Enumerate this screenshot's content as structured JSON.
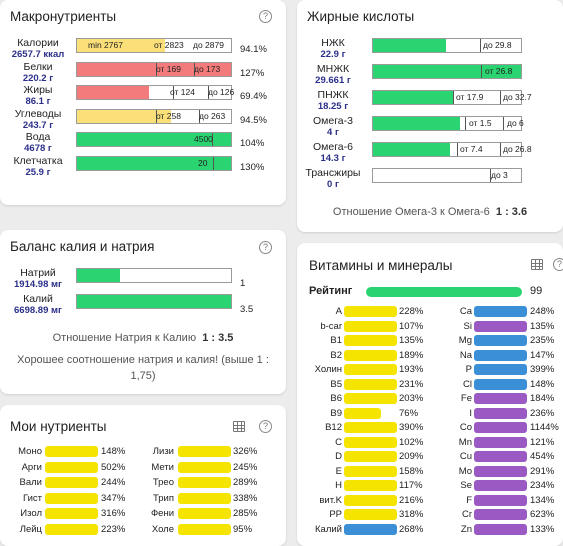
{
  "colors": {
    "green": "#2ad571",
    "red": "#f47b7b",
    "yellow_light": "#fbe07a",
    "yellow": "#f5e400",
    "blue": "#3b8fd6",
    "purple": "#9b59c4"
  },
  "macro": {
    "title": "Макронутриенты",
    "rows": [
      {
        "name": "Калории",
        "value": "2657.7 ккал",
        "fill_pct": 57,
        "color": "yellow",
        "ticks": [
          {
            "t": "min 2767",
            "dark": false
          },
          {
            "t": "от 2823",
            "dark": false
          },
          {
            "t": "до 2879",
            "dark": false
          }
        ],
        "pct": "94.1%"
      },
      {
        "name": "Белки",
        "value": "220.2 г",
        "fill_pct": 100,
        "color": "red",
        "ticks": [
          {
            "t": "от 169"
          },
          {
            "t": "до 173"
          }
        ],
        "pct": "127%"
      },
      {
        "name": "Жиры",
        "value": "86.1 г",
        "fill_pct": 47,
        "color": "red",
        "ticks": [
          {
            "t": "от 124"
          },
          {
            "t": "до 126"
          }
        ],
        "pct": "69.4%"
      },
      {
        "name": "Углеводы",
        "value": "243.7 г",
        "fill_pct": 61,
        "color": "yellow",
        "ticks": [
          {
            "t": "от 258"
          },
          {
            "t": "до 263"
          }
        ],
        "pct": "94.5%"
      },
      {
        "name": "Вода",
        "value": "4678 г",
        "fill_pct": 100,
        "color": "green",
        "ticks": [
          {
            "t": "4500"
          }
        ],
        "pct": "104%"
      },
      {
        "name": "Клетчатка",
        "value": "25.9 г",
        "fill_pct": 100,
        "color": "green",
        "ticks": [
          {
            "t": "20"
          }
        ],
        "pct": "130%"
      }
    ]
  },
  "fatty": {
    "title": "Жирные кислоты",
    "rows": [
      {
        "name": "НЖК",
        "value": "22.9 г",
        "fill_pct": 49,
        "ticks": [
          {
            "t": "до 29.8"
          }
        ]
      },
      {
        "name": "МНЖК",
        "value": "29.661 г",
        "fill_pct": 100,
        "ticks": [
          {
            "t": "от 26.8"
          }
        ]
      },
      {
        "name": "ПНЖК",
        "value": "18.25 г",
        "fill_pct": 55,
        "ticks": [
          {
            "t": "от 17.9"
          },
          {
            "t": "до 32.7"
          }
        ]
      },
      {
        "name": "Омега-3",
        "value": "4 г",
        "fill_pct": 59,
        "ticks": [
          {
            "t": "от 1.5"
          },
          {
            "t": "до 6"
          }
        ]
      },
      {
        "name": "Омега-6",
        "value": "14.3 г",
        "fill_pct": 52,
        "ticks": [
          {
            "t": "от 7.4"
          },
          {
            "t": "до 26.8"
          }
        ]
      },
      {
        "name": "Трансжиры",
        "value": "0 г",
        "fill_pct": 0,
        "ticks": [
          {
            "t": "до 3"
          }
        ]
      }
    ],
    "ratio_label": "Отношение Омега-3 к Омега-6",
    "ratio_value": "1 : 3.6"
  },
  "balance": {
    "title": "Баланс калия и натрия",
    "rows": [
      {
        "name": "Натрий",
        "value": "1914.98 мг",
        "fill_pct": 28,
        "tick": "1"
      },
      {
        "name": "Калий",
        "value": "6698.89 мг",
        "fill_pct": 100,
        "tick": "3.5"
      }
    ],
    "ratio_label": "Отношение Натрия к Калию",
    "ratio_value": "1 : 3.5",
    "note": "Хорошее соотношение натрия и калия! (выше 1 : 1,75)"
  },
  "my": {
    "title": "Мои нутриенты",
    "left": [
      {
        "name": "Моно",
        "pct": "148%"
      },
      {
        "name": "Арги",
        "pct": "502%"
      },
      {
        "name": "Вали",
        "pct": "244%"
      },
      {
        "name": "Гист",
        "pct": "347%"
      },
      {
        "name": "Изол",
        "pct": "316%"
      },
      {
        "name": "Лейц",
        "pct": "223%"
      }
    ],
    "right": [
      {
        "name": "Лизи",
        "pct": "326%"
      },
      {
        "name": "Мети",
        "pct": "245%"
      },
      {
        "name": "Трео",
        "pct": "289%"
      },
      {
        "name": "Трип",
        "pct": "338%"
      },
      {
        "name": "Фени",
        "pct": "285%"
      },
      {
        "name": "Холе",
        "pct": "95%"
      }
    ]
  },
  "vitamins": {
    "title": "Витамины и минералы",
    "rating_label": "Рейтинг",
    "rating_value": "99",
    "left": [
      {
        "name": "A",
        "pct": "228%",
        "fill": 1,
        "color": "yellow"
      },
      {
        "name": "b-car",
        "pct": "107%",
        "fill": 1,
        "color": "yellow"
      },
      {
        "name": "B1",
        "pct": "135%",
        "fill": 1,
        "color": "yellow"
      },
      {
        "name": "B2",
        "pct": "189%",
        "fill": 1,
        "color": "yellow"
      },
      {
        "name": "Холин",
        "pct": "193%",
        "fill": 1,
        "color": "yellow"
      },
      {
        "name": "B5",
        "pct": "231%",
        "fill": 1,
        "color": "yellow"
      },
      {
        "name": "B6",
        "pct": "203%",
        "fill": 1,
        "color": "yellow"
      },
      {
        "name": "B9",
        "pct": "76%",
        "fill": 0.7,
        "color": "yellow"
      },
      {
        "name": "B12",
        "pct": "390%",
        "fill": 1,
        "color": "yellow"
      },
      {
        "name": "C",
        "pct": "102%",
        "fill": 1,
        "color": "yellow"
      },
      {
        "name": "D",
        "pct": "209%",
        "fill": 1,
        "color": "yellow"
      },
      {
        "name": "E",
        "pct": "158%",
        "fill": 1,
        "color": "yellow"
      },
      {
        "name": "H",
        "pct": "117%",
        "fill": 1,
        "color": "yellow"
      },
      {
        "name": "вит.K",
        "pct": "216%",
        "fill": 1,
        "color": "yellow"
      },
      {
        "name": "PP",
        "pct": "318%",
        "fill": 1,
        "color": "yellow"
      },
      {
        "name": "Калий",
        "pct": "268%",
        "fill": 1,
        "color": "blue"
      }
    ],
    "right": [
      {
        "name": "Ca",
        "pct": "248%",
        "fill": 1,
        "color": "blue"
      },
      {
        "name": "Si",
        "pct": "135%",
        "fill": 1,
        "color": "purple"
      },
      {
        "name": "Mg",
        "pct": "235%",
        "fill": 1,
        "color": "blue"
      },
      {
        "name": "Na",
        "pct": "147%",
        "fill": 1,
        "color": "blue"
      },
      {
        "name": "P",
        "pct": "399%",
        "fill": 1,
        "color": "blue"
      },
      {
        "name": "Cl",
        "pct": "148%",
        "fill": 1,
        "color": "blue"
      },
      {
        "name": "Fe",
        "pct": "184%",
        "fill": 1,
        "color": "purple"
      },
      {
        "name": "I",
        "pct": "236%",
        "fill": 1,
        "color": "purple"
      },
      {
        "name": "Co",
        "pct": "1144%",
        "fill": 1,
        "color": "purple"
      },
      {
        "name": "Mn",
        "pct": "121%",
        "fill": 1,
        "color": "purple"
      },
      {
        "name": "Cu",
        "pct": "454%",
        "fill": 1,
        "color": "purple"
      },
      {
        "name": "Mo",
        "pct": "291%",
        "fill": 1,
        "color": "purple"
      },
      {
        "name": "Se",
        "pct": "234%",
        "fill": 1,
        "color": "purple"
      },
      {
        "name": "F",
        "pct": "134%",
        "fill": 1,
        "color": "purple"
      },
      {
        "name": "Cr",
        "pct": "623%",
        "fill": 1,
        "color": "purple"
      },
      {
        "name": "Zn",
        "pct": "133%",
        "fill": 1,
        "color": "purple"
      }
    ]
  }
}
